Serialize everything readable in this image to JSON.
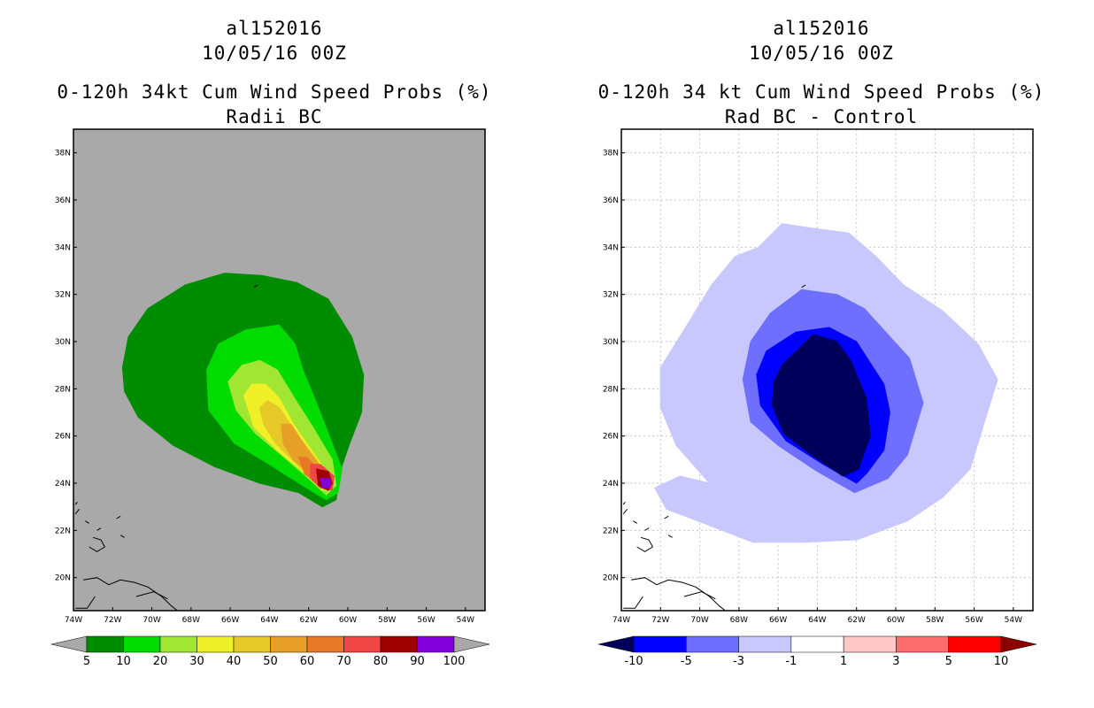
{
  "left_panel": {
    "storm_id": "al152016",
    "datetime": "10/05/16 00Z",
    "title": "0-120h 34kt Cum Wind Speed Probs (%)",
    "subtitle": "Radii BC"
  },
  "right_panel": {
    "storm_id": "al152016",
    "datetime": "10/05/16 00Z",
    "title": "0-120h 34 kt Cum Wind Speed Probs (%)",
    "subtitle": "Rad BC - Control"
  },
  "colors": {
    "land_background": "#a9a9a9",
    "prob": [
      "#008c00",
      "#00dc00",
      "#a0e632",
      "#f0f028",
      "#e6c828",
      "#e6a028",
      "#e67828",
      "#f04646",
      "#a00000",
      "#8200dc"
    ],
    "diff_neg": [
      "#00005a",
      "#0000ff",
      "#6e6eff",
      "#c8c8ff"
    ],
    "diff_pos": [
      "#ffc8c8",
      "#ff6e6e",
      "#ff0000",
      "#8c0000"
    ]
  },
  "chart_data": [
    {
      "type": "heatmap",
      "name": "Radii BC",
      "title": "0-120h 34kt Cum Wind Speed Probs (%)",
      "subtitle": "Radii BC",
      "xlabel": "",
      "ylabel": "",
      "xlim": [
        -74,
        -53
      ],
      "ylim": [
        18.6,
        39
      ],
      "x_ticks": [
        "74W",
        "72W",
        "70W",
        "68W",
        "66W",
        "64W",
        "62W",
        "60W",
        "58W",
        "56W",
        "54W"
      ],
      "y_ticks": [
        "20N",
        "22N",
        "24N",
        "26N",
        "28N",
        "30N",
        "32N",
        "34N",
        "36N",
        "38N"
      ],
      "grid": false,
      "colorbar_levels": [
        "5",
        "10",
        "20",
        "30",
        "40",
        "50",
        "60",
        "70",
        "80",
        "90",
        "100"
      ],
      "contours": [
        {
          "level": "5-10",
          "color_index": 0,
          "points": [
            [
              -71.5,
              28.9
            ],
            [
              -71.2,
              30.2
            ],
            [
              -70.2,
              31.4
            ],
            [
              -68.3,
              32.4
            ],
            [
              -66.3,
              32.9
            ],
            [
              -64.4,
              32.8
            ],
            [
              -62.6,
              32.5
            ],
            [
              -61.0,
              31.8
            ],
            [
              -59.8,
              30.2
            ],
            [
              -59.2,
              28.6
            ],
            [
              -59.3,
              27.0
            ],
            [
              -59.9,
              25.7
            ],
            [
              -60.4,
              24.5
            ],
            [
              -60.6,
              23.3
            ],
            [
              -61.3,
              23.0
            ],
            [
              -62.5,
              23.6
            ],
            [
              -64.5,
              24.0
            ],
            [
              -66.8,
              24.7
            ],
            [
              -68.9,
              25.6
            ],
            [
              -70.7,
              26.8
            ],
            [
              -71.4,
              27.9
            ]
          ]
        },
        {
          "level": "10-20",
          "color_index": 1,
          "points": [
            [
              -67.2,
              28.8
            ],
            [
              -66.6,
              29.9
            ],
            [
              -65.2,
              30.5
            ],
            [
              -63.5,
              30.7
            ],
            [
              -62.7,
              29.9
            ],
            [
              -62.3,
              28.8
            ],
            [
              -61.6,
              27.4
            ],
            [
              -60.9,
              25.9
            ],
            [
              -60.3,
              24.6
            ],
            [
              -60.5,
              23.6
            ],
            [
              -61.1,
              23.3
            ],
            [
              -62.3,
              23.9
            ],
            [
              -64.0,
              24.8
            ],
            [
              -65.8,
              25.7
            ],
            [
              -67.1,
              27.1
            ]
          ]
        },
        {
          "level": "20-30",
          "color_index": 2,
          "points": [
            [
              -66.1,
              28.3
            ],
            [
              -65.4,
              29.0
            ],
            [
              -64.5,
              29.2
            ],
            [
              -63.6,
              28.8
            ],
            [
              -62.8,
              27.7
            ],
            [
              -61.8,
              26.4
            ],
            [
              -60.8,
              25.0
            ],
            [
              -60.6,
              23.9
            ],
            [
              -61.1,
              23.5
            ],
            [
              -62.0,
              24.2
            ],
            [
              -63.4,
              25.2
            ],
            [
              -64.7,
              26.1
            ],
            [
              -65.7,
              27.1
            ]
          ]
        },
        {
          "level": "30-40",
          "color_index": 3,
          "points": [
            [
              -65.3,
              27.7
            ],
            [
              -64.9,
              28.2
            ],
            [
              -64.2,
              28.2
            ],
            [
              -63.5,
              27.6
            ],
            [
              -62.7,
              26.4
            ],
            [
              -61.6,
              25.1
            ],
            [
              -60.9,
              24.2
            ],
            [
              -61.3,
              23.7
            ],
            [
              -62.3,
              24.5
            ],
            [
              -63.6,
              25.4
            ],
            [
              -64.8,
              26.4
            ]
          ]
        },
        {
          "level": "40-50",
          "color_index": 4,
          "points": [
            [
              -64.5,
              27.2
            ],
            [
              -64.1,
              27.5
            ],
            [
              -63.5,
              27.2
            ],
            [
              -62.7,
              26.2
            ],
            [
              -61.6,
              25.0
            ],
            [
              -61.1,
              24.3
            ],
            [
              -61.6,
              24.0
            ],
            [
              -62.6,
              24.8
            ],
            [
              -63.7,
              25.7
            ],
            [
              -64.3,
              26.5
            ]
          ]
        },
        {
          "level": "50-60",
          "color_index": 5,
          "points": [
            [
              -63.4,
              26.5
            ],
            [
              -62.9,
              26.5
            ],
            [
              -62.2,
              25.6
            ],
            [
              -61.4,
              24.7
            ],
            [
              -61.2,
              24.2
            ],
            [
              -61.8,
              24.3
            ],
            [
              -62.8,
              25.0
            ],
            [
              -63.3,
              25.7
            ]
          ]
        },
        {
          "level": "60-70",
          "color_index": 6,
          "points": [
            [
              -62.5,
              25.1
            ],
            [
              -62.1,
              25.1
            ],
            [
              -61.5,
              24.6
            ],
            [
              -61.0,
              24.0
            ],
            [
              -61.4,
              23.9
            ],
            [
              -62.2,
              24.4
            ]
          ]
        },
        {
          "level": "70-80",
          "color_index": 7,
          "points": [
            [
              -61.9,
              24.8
            ],
            [
              -61.4,
              24.8
            ],
            [
              -60.7,
              24.3
            ],
            [
              -60.8,
              23.7
            ],
            [
              -61.4,
              23.8
            ],
            [
              -61.9,
              24.2
            ]
          ]
        },
        {
          "level": "80-90",
          "color_index": 8,
          "points": [
            [
              -61.6,
              24.6
            ],
            [
              -61.0,
              24.5
            ],
            [
              -60.8,
              24.0
            ],
            [
              -61.0,
              23.7
            ],
            [
              -61.5,
              23.9
            ]
          ]
        },
        {
          "level": "90-100",
          "color_index": 9,
          "points": [
            [
              -61.4,
              24.2
            ],
            [
              -60.9,
              24.2
            ],
            [
              -60.9,
              23.8
            ],
            [
              -61.3,
              23.8
            ]
          ]
        }
      ]
    },
    {
      "type": "heatmap",
      "name": "Rad BC - Control",
      "title": "0-120h 34 kt Cum Wind Speed Probs (%)",
      "subtitle": "Rad BC - Control",
      "xlabel": "",
      "ylabel": "",
      "xlim": [
        -74,
        -53
      ],
      "ylim": [
        18.6,
        39
      ],
      "x_ticks": [
        "74W",
        "72W",
        "70W",
        "68W",
        "66W",
        "64W",
        "62W",
        "60W",
        "58W",
        "56W",
        "54W"
      ],
      "y_ticks": [
        "20N",
        "22N",
        "24N",
        "26N",
        "28N",
        "30N",
        "32N",
        "34N",
        "36N",
        "38N"
      ],
      "grid": true,
      "colorbar_levels": [
        "-10",
        "-5",
        "-3",
        "-1",
        "1",
        "3",
        "5",
        "10"
      ],
      "colorbar_colors": [
        "#00005a",
        "#0000ff",
        "#6e6eff",
        "#c8c8ff",
        "#ffffff",
        "#ffc8c8",
        "#ff6e6e",
        "#ff0000",
        "#8c0000"
      ],
      "contours": [
        {
          "level": "-3 to -1",
          "color_index": 3,
          "points": [
            [
              -67.0,
              34.0
            ],
            [
              -65.8,
              35.0
            ],
            [
              -64.2,
              34.8
            ],
            [
              -62.4,
              34.6
            ],
            [
              -61.0,
              33.6
            ],
            [
              -59.6,
              32.4
            ],
            [
              -57.6,
              31.3
            ],
            [
              -55.8,
              29.9
            ],
            [
              -54.8,
              28.4
            ],
            [
              -55.4,
              26.8
            ],
            [
              -56.2,
              24.6
            ],
            [
              -57.6,
              23.4
            ],
            [
              -59.4,
              22.4
            ],
            [
              -62.0,
              21.6
            ],
            [
              -64.7,
              21.5
            ],
            [
              -67.3,
              21.5
            ],
            [
              -69.8,
              22.3
            ],
            [
              -71.7,
              22.9
            ],
            [
              -72.3,
              23.8
            ],
            [
              -71.0,
              24.3
            ],
            [
              -69.5,
              24.0
            ],
            [
              -71.2,
              25.6
            ],
            [
              -72.0,
              27.2
            ],
            [
              -72.0,
              28.9
            ],
            [
              -70.8,
              30.5
            ],
            [
              -69.4,
              32.4
            ],
            [
              -68.2,
              33.6
            ]
          ]
        },
        {
          "level": "-5 to -3",
          "color_index": 2,
          "points": [
            [
              -66.4,
              31.2
            ],
            [
              -64.8,
              32.2
            ],
            [
              -63.0,
              32.0
            ],
            [
              -61.6,
              31.4
            ],
            [
              -60.4,
              30.3
            ],
            [
              -59.3,
              29.3
            ],
            [
              -58.6,
              27.4
            ],
            [
              -59.4,
              25.2
            ],
            [
              -60.4,
              24.2
            ],
            [
              -62.1,
              23.6
            ],
            [
              -64.0,
              24.5
            ],
            [
              -66.0,
              25.6
            ],
            [
              -67.4,
              26.6
            ],
            [
              -67.8,
              28.4
            ],
            [
              -67.4,
              30.0
            ]
          ]
        },
        {
          "level": "-10 to -5",
          "color_index": 1,
          "points": [
            [
              -66.6,
              29.6
            ],
            [
              -65.1,
              30.4
            ],
            [
              -63.4,
              30.6
            ],
            [
              -62.0,
              30.0
            ],
            [
              -60.6,
              28.2
            ],
            [
              -60.3,
              27.0
            ],
            [
              -60.6,
              25.4
            ],
            [
              -61.5,
              24.4
            ],
            [
              -62.0,
              24.0
            ],
            [
              -63.7,
              24.8
            ],
            [
              -65.6,
              25.8
            ],
            [
              -66.9,
              27.3
            ],
            [
              -67.1,
              28.6
            ]
          ]
        },
        {
          "level": "< -10",
          "color_index": 0,
          "points": [
            [
              -65.8,
              29.0
            ],
            [
              -64.2,
              30.3
            ],
            [
              -63.0,
              30.0
            ],
            [
              -62.3,
              29.2
            ],
            [
              -61.5,
              27.6
            ],
            [
              -61.3,
              26.0
            ],
            [
              -61.9,
              24.6
            ],
            [
              -62.7,
              24.3
            ],
            [
              -64.3,
              25.2
            ],
            [
              -65.7,
              26.1
            ],
            [
              -66.3,
              27.3
            ],
            [
              -66.2,
              28.3
            ]
          ]
        }
      ]
    }
  ]
}
